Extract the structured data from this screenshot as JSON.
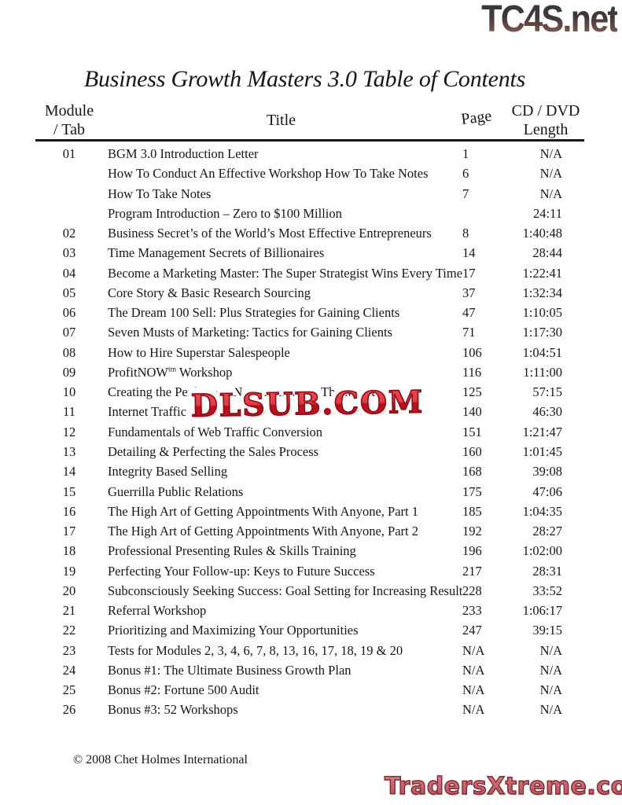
{
  "branding": {
    "top_logo": "TC4S.net",
    "watermark": "DLSUB.COM",
    "bottom_logo": "TradersXtreme.com"
  },
  "doc": {
    "title": "Business Growth Masters 3.0 Table of Contents",
    "footer": "© 2008 Chet Holmes International"
  },
  "table": {
    "headers": {
      "module_line1": "Module",
      "module_line2": "/ Tab",
      "title": "Title",
      "page": "Page",
      "length_line1": "CD / DVD",
      "length_line2": "Length"
    },
    "rows": [
      {
        "module": "01",
        "title": "BGM 3.0 Introduction Letter",
        "page": "1",
        "length": "N/A"
      },
      {
        "module": "",
        "title": "How To Conduct An Effective Workshop How To Take Notes",
        "page": "6",
        "length": "N/A"
      },
      {
        "module": "",
        "title": "How To Take Notes",
        "page": "7",
        "length": "N/A"
      },
      {
        "module": "",
        "title": "Program Introduction – Zero to $100 Million",
        "page": "",
        "length": "24:11"
      },
      {
        "module": "02",
        "title": "Business Secret’s of the World’s Most Effective Entrepreneurs",
        "page": "8",
        "length": "1:40:48"
      },
      {
        "module": "03",
        "title": "Time Management Secrets of Billionaires",
        "page": "14",
        "length": "28:44"
      },
      {
        "module": "04",
        "title": "Become a Marketing Master: The Super Strategist Wins Every Time!",
        "page": "17",
        "length": "1:22:41"
      },
      {
        "module": "05",
        "title": "Core Story & Basic Research Sourcing",
        "page": "37",
        "length": "1:32:34"
      },
      {
        "module": "06",
        "title": "The Dream 100 Sell: Plus Strategies for Gaining Clients",
        "page": "47",
        "length": "1:10:05"
      },
      {
        "module": "07",
        "title": "Seven Musts of Marketing: Tactics for Gaining Clients",
        "page": "71",
        "length": "1:17:30"
      },
      {
        "module": "08",
        "title": "How to Hire Superstar Salespeople",
        "page": "106",
        "length": "1:04:51"
      },
      {
        "module": "09",
        "title": "ProfitNOW",
        "title_sup": "tm",
        "title_rest": " Workshop",
        "page": "116",
        "length": "1:11:00"
      },
      {
        "module": "10",
        "title": "Creating the Perfect Ad No Matter What The Media",
        "page": "125",
        "length": "57:15"
      },
      {
        "module": "11",
        "title": "Internet Traffic and",
        "page": "140",
        "length": "46:30"
      },
      {
        "module": "12",
        "title": "Fundamentals of Web Traffic Conversion",
        "page": "151",
        "length": "1:21:47"
      },
      {
        "module": "13",
        "title": "Detailing & Perfecting the Sales Process",
        "page": "160",
        "length": "1:01:45"
      },
      {
        "module": "14",
        "title": "Integrity Based Selling",
        "page": "168",
        "length": "39:08"
      },
      {
        "module": "15",
        "title": "Guerrilla Public Relations",
        "page": "175",
        "length": "47:06"
      },
      {
        "module": "16",
        "title": "The High Art of Getting Appointments With Anyone, Part 1",
        "page": "185",
        "length": "1:04:35"
      },
      {
        "module": "17",
        "title": "The High Art of Getting Appointments With Anyone, Part 2",
        "page": "192",
        "length": "28:27"
      },
      {
        "module": "18",
        "title": "Professional Presenting Rules & Skills Training",
        "page": "196",
        "length": "1:02:00"
      },
      {
        "module": "19",
        "title": "Perfecting Your Follow-up: Keys to Future Success",
        "page": "217",
        "length": "28:31"
      },
      {
        "module": "20",
        "title": "Subconsciously Seeking Success: Goal Setting for Increasing Results",
        "page": "228",
        "length": "33:52"
      },
      {
        "module": "21",
        "title": "Referral Workshop",
        "page": "233",
        "length": "1:06:17"
      },
      {
        "module": "22",
        "title": "Prioritizing and Maximizing Your Opportunities",
        "page": "247",
        "length": "39:15"
      },
      {
        "module": "23",
        "title": "Tests for Modules 2, 3, 4, 6, 7, 8, 13, 16, 17, 18, 19 & 20",
        "page": "N/A",
        "length": "N/A"
      },
      {
        "module": "24",
        "title": "Bonus #1: The Ultimate Business Growth Plan",
        "page": "N/A",
        "length": "N/A"
      },
      {
        "module": "25",
        "title": "Bonus #2: Fortune 500 Audit",
        "page": "N/A",
        "length": "N/A"
      },
      {
        "module": "26",
        "title": "Bonus #3: 52 Workshops",
        "page": "N/A",
        "length": "N/A"
      }
    ]
  },
  "colors": {
    "ink": "#161616",
    "tc4s_top": "#3d3839",
    "tc4s_bottom": "#9a6a5e",
    "dlsub_red": "#cf1126",
    "dlsub_dark": "#8e0e16",
    "dlsub_light": "#ee4a50",
    "traders_fill": "#c9606a",
    "traders_dark": "#7e2d33"
  }
}
